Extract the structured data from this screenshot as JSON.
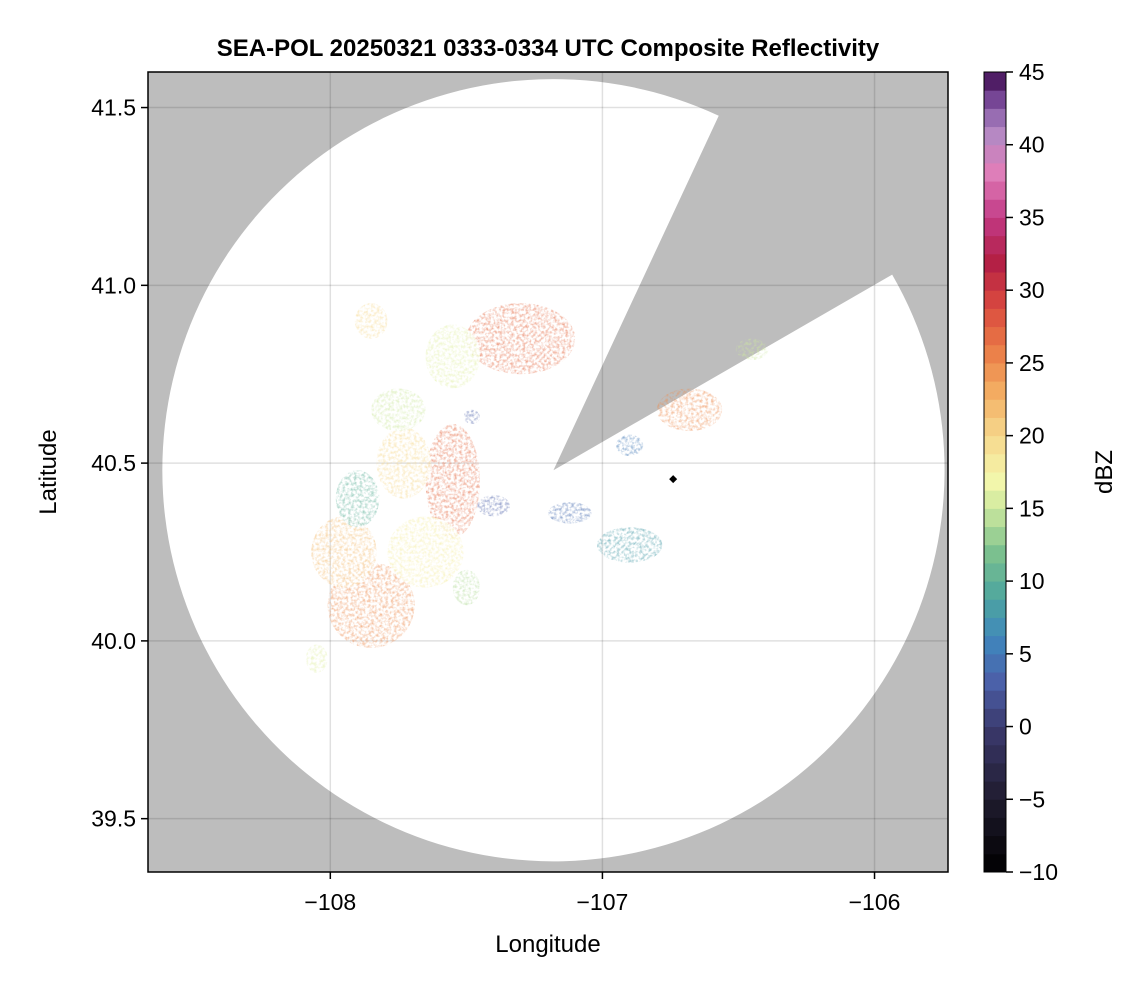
{
  "chart_data": {
    "type": "heatmap",
    "title": "SEA-POL 20250321 0333-0334 UTC Composite Reflectivity",
    "xlabel": "Longitude",
    "ylabel": "Latitude",
    "xlim": [
      -108.67,
      -105.73
    ],
    "ylim": [
      39.35,
      41.6
    ],
    "xticks": [
      -108,
      -107,
      -106
    ],
    "xtick_labels": [
      "−108",
      "−107",
      "−106"
    ],
    "yticks": [
      39.5,
      40.0,
      40.5,
      41.0,
      41.5
    ],
    "ytick_labels": [
      "39.5",
      "40.0",
      "40.5",
      "41.0",
      "41.5"
    ],
    "grid": true,
    "background_color": "#bdbdbd",
    "radar": {
      "center_lon": -107.18,
      "center_lat": 40.48,
      "range_deg_lat": 1.1,
      "blocked_sector_deg": [
        25,
        60
      ]
    },
    "colorbar": {
      "label": "dBZ",
      "min": -10,
      "max": 45,
      "ticks": [
        -10,
        -5,
        0,
        5,
        10,
        15,
        20,
        25,
        30,
        35,
        40,
        45
      ],
      "tick_labels": [
        "−10",
        "−5",
        "0",
        "5",
        "10",
        "15",
        "20",
        "25",
        "30",
        "35",
        "40",
        "45"
      ],
      "colormap_stops": [
        [
          -10,
          "#000000"
        ],
        [
          -5,
          "#1f1b2e"
        ],
        [
          0,
          "#3b3a6e"
        ],
        [
          3,
          "#4b5fa8"
        ],
        [
          6,
          "#3f86bd"
        ],
        [
          9,
          "#4fa79e"
        ],
        [
          12,
          "#7dc18e"
        ],
        [
          15,
          "#cde89e"
        ],
        [
          17,
          "#f4f7ac"
        ],
        [
          20,
          "#f6d88d"
        ],
        [
          23,
          "#f3ad62"
        ],
        [
          26,
          "#ea7b46"
        ],
        [
          29,
          "#d9483f"
        ],
        [
          32,
          "#b21e45"
        ],
        [
          35,
          "#c23a86"
        ],
        [
          38,
          "#e07db8"
        ],
        [
          41,
          "#b089c4"
        ],
        [
          43,
          "#7a4a9a"
        ],
        [
          45,
          "#3d0a4f"
        ]
      ]
    },
    "echoes": [
      {
        "lon": -107.55,
        "lat": 40.45,
        "rx": 0.1,
        "ry": 0.16,
        "dbz": 27
      },
      {
        "lon": -107.73,
        "lat": 40.5,
        "rx": 0.1,
        "ry": 0.1,
        "dbz": 20
      },
      {
        "lon": -107.3,
        "lat": 40.85,
        "rx": 0.2,
        "ry": 0.1,
        "dbz": 27
      },
      {
        "lon": -107.55,
        "lat": 40.8,
        "rx": 0.1,
        "ry": 0.09,
        "dbz": 16
      },
      {
        "lon": -107.85,
        "lat": 40.1,
        "rx": 0.16,
        "ry": 0.12,
        "dbz": 25
      },
      {
        "lon": -107.95,
        "lat": 40.25,
        "rx": 0.12,
        "ry": 0.1,
        "dbz": 22
      },
      {
        "lon": -107.65,
        "lat": 40.25,
        "rx": 0.14,
        "ry": 0.1,
        "dbz": 18
      },
      {
        "lon": -107.9,
        "lat": 40.4,
        "rx": 0.08,
        "ry": 0.08,
        "dbz": 10
      },
      {
        "lon": -107.75,
        "lat": 40.65,
        "rx": 0.1,
        "ry": 0.06,
        "dbz": 15
      },
      {
        "lon": -107.85,
        "lat": 40.9,
        "rx": 0.06,
        "ry": 0.05,
        "dbz": 20
      },
      {
        "lon": -107.48,
        "lat": 40.63,
        "rx": 0.03,
        "ry": 0.02,
        "dbz": 3
      },
      {
        "lon": -107.4,
        "lat": 40.38,
        "rx": 0.06,
        "ry": 0.03,
        "dbz": 3
      },
      {
        "lon": -107.12,
        "lat": 40.36,
        "rx": 0.08,
        "ry": 0.03,
        "dbz": 4
      },
      {
        "lon": -106.9,
        "lat": 40.27,
        "rx": 0.12,
        "ry": 0.05,
        "dbz": 8
      },
      {
        "lon": -106.68,
        "lat": 40.65,
        "rx": 0.12,
        "ry": 0.06,
        "dbz": 25
      },
      {
        "lon": -106.45,
        "lat": 40.82,
        "rx": 0.06,
        "ry": 0.03,
        "dbz": 15
      },
      {
        "lon": -106.9,
        "lat": 40.55,
        "rx": 0.05,
        "ry": 0.03,
        "dbz": 5
      },
      {
        "lon": -107.5,
        "lat": 40.15,
        "rx": 0.05,
        "ry": 0.05,
        "dbz": 14
      },
      {
        "lon": -108.05,
        "lat": 39.95,
        "rx": 0.04,
        "ry": 0.04,
        "dbz": 16
      }
    ],
    "markers": [
      {
        "lon": -106.74,
        "lat": 40.455,
        "shape": "diamond",
        "color": "#000000"
      }
    ]
  }
}
